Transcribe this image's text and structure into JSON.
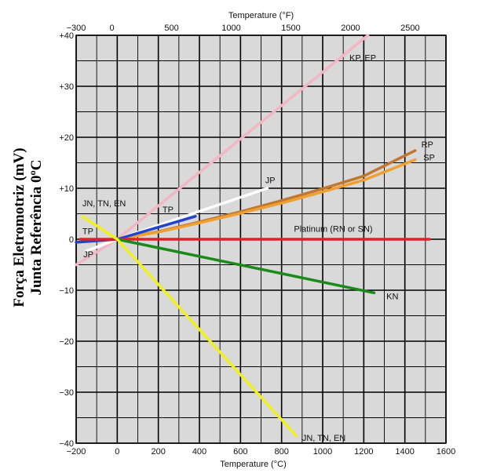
{
  "chart_data": {
    "type": "line",
    "ylabel_line1": "Força Eletromotriz (mV)",
    "ylabel_line2": "Junta Referência 0ºC",
    "xlabel": "Temperature (°C)",
    "top_xlabel": "Temperature (°F)",
    "xlim": [
      -200,
      1600
    ],
    "ylim": [
      -40,
      40
    ],
    "top_xlim": [
      -300,
      2800
    ],
    "x_ticks": [
      "−200",
      "0",
      "200",
      "400",
      "600",
      "800",
      "1000",
      "1200",
      "1400",
      "1600"
    ],
    "x_tick_values": [
      -200,
      0,
      200,
      400,
      600,
      800,
      1000,
      1200,
      1400,
      1600
    ],
    "top_x_ticks": [
      "−300",
      "0",
      "500",
      "1000",
      "1500",
      "2000",
      "2500"
    ],
    "top_x_tick_values": [
      -300,
      0,
      500,
      1000,
      1500,
      2000,
      2500
    ],
    "y_ticks": [
      "+40",
      "+30",
      "+20",
      "+10",
      "0",
      "−10",
      "−20",
      "−30",
      "−40"
    ],
    "y_tick_values": [
      40,
      30,
      20,
      10,
      0,
      -10,
      -20,
      -30,
      -40
    ],
    "grid": true,
    "series": [
      {
        "name": "KP, EP",
        "color": "#f4b6c2",
        "x": [
          -200,
          0,
          1220
        ],
        "y": [
          -5,
          0,
          40
        ]
      },
      {
        "name": "RP",
        "color": "#c07830",
        "x": [
          0,
          200,
          400,
          600,
          800,
          1000,
          1200,
          1450
        ],
        "y": [
          0,
          1.5,
          3.4,
          5.4,
          7.6,
          9.9,
          12.4,
          17.4
        ]
      },
      {
        "name": "SP",
        "color": "#f0a030",
        "x": [
          0,
          200,
          400,
          600,
          800,
          1000,
          1200,
          1450
        ],
        "y": [
          0,
          1.4,
          3.2,
          5.1,
          7.1,
          9.3,
          11.6,
          15.6
        ]
      },
      {
        "name": "JP",
        "color": "#ffffff",
        "x": [
          -150,
          0,
          730
        ],
        "y": [
          -2.3,
          0,
          10
        ]
      },
      {
        "name": "TP",
        "color": "#2244cc",
        "x": [
          -200,
          0,
          380
        ],
        "y": [
          -0.6,
          0,
          4.5
        ]
      },
      {
        "name": "Platinum (RN or SN)",
        "color": "#e0202a",
        "x": [
          -180,
          1520
        ],
        "y": [
          0,
          0
        ]
      },
      {
        "name": "KN",
        "color": "#1a8a1a",
        "x": [
          0,
          1250
        ],
        "y": [
          0,
          -10.5
        ]
      },
      {
        "name": "JN, TN, EN",
        "color": "#f0f020",
        "x": [
          -170,
          0,
          870
        ],
        "y": [
          4.5,
          0,
          -38.5
        ]
      }
    ],
    "labels": [
      {
        "text": "KP, EP",
        "x": 1130,
        "y": 35
      },
      {
        "text": "RP",
        "x": 1480,
        "y": 18
      },
      {
        "text": "SP",
        "x": 1490,
        "y": 15.5
      },
      {
        "text": "JP",
        "x": 720,
        "y": 11
      },
      {
        "text": "TP",
        "x": 220,
        "y": 5.2
      },
      {
        "text": "JN, TN, EN",
        "x": -170,
        "y": 6.5
      },
      {
        "text": "TP",
        "x": -170,
        "y": 1
      },
      {
        "text": "JP",
        "x": -165,
        "y": -3.5
      },
      {
        "text": "Platinum (RN or SN)",
        "x": 860,
        "y": 1.5
      },
      {
        "text": "KN",
        "x": 1310,
        "y": -11.8
      },
      {
        "text": "JN, TN, EN",
        "x": 900,
        "y": -39.5
      }
    ]
  }
}
